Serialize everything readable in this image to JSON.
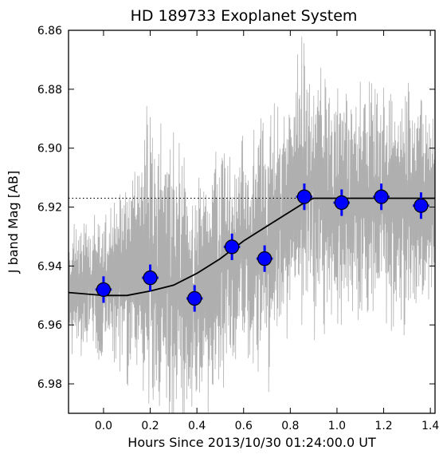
{
  "chart_data": {
    "type": "scatter",
    "title": "HD 189733 Exoplanet System",
    "xlabel": "Hours Since 2013/10/30 01:24:00.0 UT",
    "ylabel": "J band Mag [AB]",
    "xlim": [
      -0.15,
      1.42
    ],
    "ylim": [
      6.86,
      6.99
    ],
    "y_inverted": true,
    "x_ticks": [
      0.0,
      0.2,
      0.4,
      0.6,
      0.8,
      1.0,
      1.2,
      1.4
    ],
    "x_tick_labels": [
      "0.0",
      "0.2",
      "0.4",
      "0.6",
      "0.8",
      "1.0",
      "1.2",
      "1.4"
    ],
    "y_ticks": [
      6.86,
      6.88,
      6.9,
      6.92,
      6.94,
      6.96,
      6.98
    ],
    "y_tick_labels": [
      "6.86",
      "6.88",
      "6.90",
      "6.92",
      "6.94",
      "6.96",
      "6.98"
    ],
    "grid": false,
    "colors": {
      "binned_points": "#0000ff",
      "raw_data": "#a6a6a6",
      "model": "#000000",
      "baseline": "#000000"
    },
    "raw_series": {
      "style": "gray noisy time series",
      "envelope": [
        {
          "x": -0.15,
          "low": 6.93,
          "high": 6.965
        },
        {
          "x": 0.0,
          "low": 6.925,
          "high": 6.97
        },
        {
          "x": 0.12,
          "low": 6.91,
          "high": 6.975
        },
        {
          "x": 0.2,
          "low": 6.895,
          "high": 6.985
        },
        {
          "x": 0.3,
          "low": 6.9,
          "high": 6.99
        },
        {
          "x": 0.4,
          "low": 6.915,
          "high": 6.99
        },
        {
          "x": 0.5,
          "low": 6.905,
          "high": 6.975
        },
        {
          "x": 0.6,
          "low": 6.9,
          "high": 6.965
        },
        {
          "x": 0.7,
          "low": 6.895,
          "high": 6.975
        },
        {
          "x": 0.8,
          "low": 6.88,
          "high": 6.955
        },
        {
          "x": 0.87,
          "low": 6.865,
          "high": 6.955
        },
        {
          "x": 1.0,
          "low": 6.885,
          "high": 6.955
        },
        {
          "x": 1.1,
          "low": 6.885,
          "high": 6.955
        },
        {
          "x": 1.2,
          "low": 6.88,
          "high": 6.955
        },
        {
          "x": 1.3,
          "low": 6.885,
          "high": 6.955
        },
        {
          "x": 1.42,
          "low": 6.895,
          "high": 6.945
        }
      ]
    },
    "binned_points": [
      {
        "x": 0.0,
        "y": 6.948,
        "xerr": 0.035,
        "yerr": 0.0045
      },
      {
        "x": 0.2,
        "y": 6.944,
        "xerr": 0.035,
        "yerr": 0.0045
      },
      {
        "x": 0.39,
        "y": 6.951,
        "xerr": 0.035,
        "yerr": 0.0045
      },
      {
        "x": 0.55,
        "y": 6.9335,
        "xerr": 0.035,
        "yerr": 0.0045
      },
      {
        "x": 0.69,
        "y": 6.9375,
        "xerr": 0.035,
        "yerr": 0.0045
      },
      {
        "x": 0.86,
        "y": 6.9165,
        "xerr": 0.035,
        "yerr": 0.0045
      },
      {
        "x": 1.02,
        "y": 6.9185,
        "xerr": 0.035,
        "yerr": 0.0045
      },
      {
        "x": 1.19,
        "y": 6.9165,
        "xerr": 0.035,
        "yerr": 0.0045
      },
      {
        "x": 1.36,
        "y": 6.9195,
        "xerr": 0.035,
        "yerr": 0.0045
      }
    ],
    "model_curve": [
      {
        "x": -0.15,
        "y": 6.949
      },
      {
        "x": 0.0,
        "y": 6.95
      },
      {
        "x": 0.1,
        "y": 6.95
      },
      {
        "x": 0.2,
        "y": 6.9485
      },
      {
        "x": 0.3,
        "y": 6.9465
      },
      {
        "x": 0.4,
        "y": 6.9425
      },
      {
        "x": 0.5,
        "y": 6.9375
      },
      {
        "x": 0.6,
        "y": 6.9315
      },
      {
        "x": 0.7,
        "y": 6.9265
      },
      {
        "x": 0.8,
        "y": 6.9215
      },
      {
        "x": 0.87,
        "y": 6.918
      },
      {
        "x": 0.9,
        "y": 6.917
      },
      {
        "x": 1.42,
        "y": 6.917
      }
    ],
    "baseline": {
      "y": 6.917,
      "style": "dotted"
    }
  }
}
